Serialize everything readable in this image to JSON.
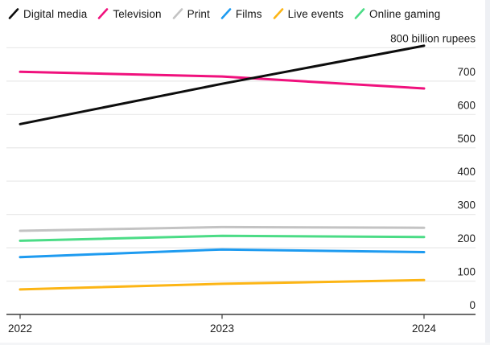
{
  "chart_data": {
    "type": "line",
    "title": "",
    "unit_label": "800 billion rupees",
    "x": [
      "2022",
      "2023",
      "2024"
    ],
    "ylim": [
      0,
      800
    ],
    "ytick_step": 100,
    "y_tick_labels": [
      "0",
      "100",
      "200",
      "300",
      "400",
      "500",
      "600",
      "700"
    ],
    "grid": "horizontal-only",
    "legend_position": "top-left",
    "series": [
      {
        "name": "Digital media",
        "color": "#0d0d0d",
        "values": [
          571,
          692,
          806
        ]
      },
      {
        "name": "Television",
        "color": "#f0117d",
        "values": [
          728,
          714,
          678
        ]
      },
      {
        "name": "Print",
        "color": "#c3c3c3",
        "values": [
          251,
          262,
          260
        ]
      },
      {
        "name": "Films",
        "color": "#1e9bf0",
        "values": [
          172,
          195,
          187
        ]
      },
      {
        "name": "Live events",
        "color": "#fcb515",
        "values": [
          75,
          92,
          103
        ]
      },
      {
        "name": "Online gaming",
        "color": "#4bdc86",
        "values": [
          221,
          236,
          232
        ]
      }
    ]
  },
  "colors": {
    "grid": "#e9e9e9",
    "axis": "#3c3c3c",
    "label_text": "#1c1c1c",
    "background": "#ffffff"
  }
}
